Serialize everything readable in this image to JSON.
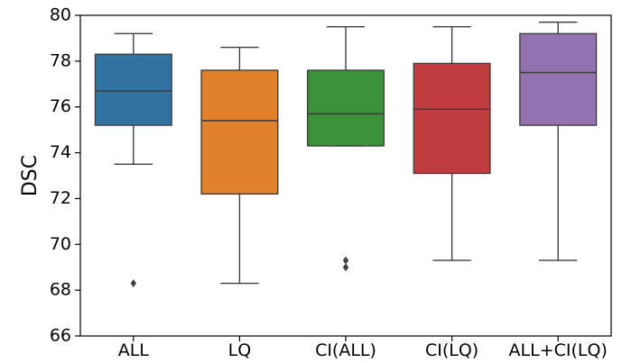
{
  "chart_data": {
    "type": "box",
    "ylabel": "DSC",
    "xlabel": "",
    "ylim": [
      66,
      80
    ],
    "yticks": [
      66,
      68,
      70,
      72,
      74,
      76,
      78,
      80
    ],
    "grid": false,
    "categories": [
      "ALL",
      "LQ",
      "CI(ALL)",
      "CI(LQ)",
      "ALL+CI(LQ)"
    ],
    "boxes": [
      {
        "category": "ALL",
        "color": "#3274A1",
        "whisker_low": 73.5,
        "q1": 75.2,
        "median": 76.7,
        "q3": 78.3,
        "whisker_high": 79.2,
        "outliers": [
          68.3
        ]
      },
      {
        "category": "LQ",
        "color": "#E1812C",
        "whisker_low": 68.3,
        "q1": 72.2,
        "median": 75.4,
        "q3": 77.6,
        "whisker_high": 78.6,
        "outliers": []
      },
      {
        "category": "CI(ALL)",
        "color": "#3A923A",
        "whisker_low": 74.3,
        "q1": 74.3,
        "median": 75.7,
        "q3": 77.6,
        "whisker_high": 79.5,
        "outliers": [
          69.0,
          69.3
        ]
      },
      {
        "category": "CI(LQ)",
        "color": "#C03D3E",
        "whisker_low": 69.3,
        "q1": 73.1,
        "median": 75.9,
        "q3": 77.9,
        "whisker_high": 79.5,
        "outliers": []
      },
      {
        "category": "ALL+CI(LQ)",
        "color": "#9372B2",
        "whisker_low": 69.3,
        "q1": 75.2,
        "median": 77.5,
        "q3": 79.2,
        "whisker_high": 79.7,
        "outliers": []
      }
    ]
  }
}
